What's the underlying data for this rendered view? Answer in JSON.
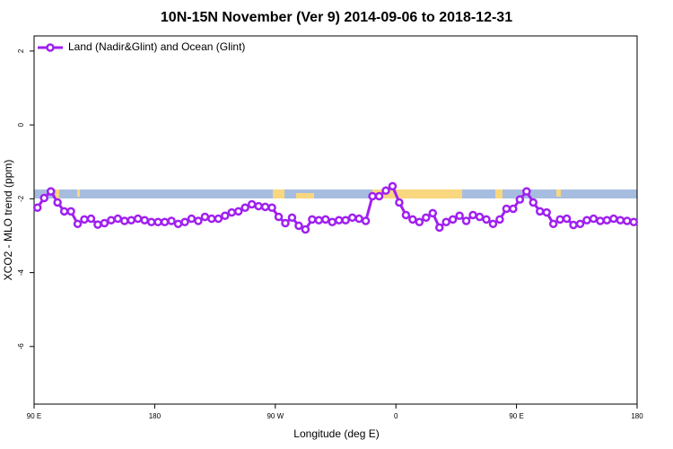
{
  "chart_data": {
    "type": "line",
    "title": "10N-15N November (Ver 9)   2014-09-06 to 2018-12-31",
    "x_label": "Longitude (deg E)",
    "y_label": "XCO2 - MLO trend (ppm)",
    "x": [
      92.5,
      97.5,
      102.5,
      107.5,
      112.5,
      117.5,
      122.5,
      127.5,
      132.5,
      137.5,
      142.5,
      147.5,
      152.5,
      157.5,
      162.5,
      167.5,
      172.5,
      177.5,
      182.5,
      187.5,
      192.5,
      197.5,
      202.5,
      207.5,
      212.5,
      217.5,
      222.5,
      227.5,
      232.5,
      237.5,
      242.5,
      247.5,
      252.5,
      257.5,
      262.5,
      267.5,
      272.5,
      277.5,
      282.5,
      287.5,
      292.5,
      297.5,
      302.5,
      307.5,
      312.5,
      317.5,
      322.5,
      327.5,
      332.5,
      337.5,
      342.5,
      347.5,
      352.5,
      357.5,
      362.5,
      367.5,
      372.5,
      377.5,
      382.5,
      387.5,
      392.5,
      397.5,
      402.5,
      407.5,
      412.5,
      417.5,
      422.5,
      427.5,
      432.5,
      437.5,
      442.5,
      447.5,
      452.5,
      457.5,
      462.5,
      467.5,
      472.5,
      477.5,
      482.5,
      487.5,
      492.5,
      497.5,
      502.5,
      507.5,
      512.5,
      517.5,
      522.5,
      527.5,
      532.5,
      537.5
    ],
    "series": [
      {
        "name": "Land (Nadir&Glint) and Ocean (Glint)",
        "color": "#a020f0",
        "values": [
          -2.24,
          -1.98,
          -1.8,
          -2.1,
          -2.34,
          -2.34,
          -2.68,
          -2.56,
          -2.54,
          -2.7,
          -2.66,
          -2.58,
          -2.54,
          -2.6,
          -2.58,
          -2.54,
          -2.58,
          -2.63,
          -2.63,
          -2.63,
          -2.6,
          -2.68,
          -2.63,
          -2.54,
          -2.6,
          -2.49,
          -2.54,
          -2.54,
          -2.46,
          -2.37,
          -2.34,
          -2.24,
          -2.15,
          -2.2,
          -2.22,
          -2.24,
          -2.49,
          -2.66,
          -2.51,
          -2.73,
          -2.83,
          -2.56,
          -2.58,
          -2.56,
          -2.63,
          -2.58,
          -2.58,
          -2.51,
          -2.54,
          -2.6,
          -1.93,
          -1.93,
          -1.78,
          -1.66,
          -2.1,
          -2.44,
          -2.56,
          -2.63,
          -2.51,
          -2.39,
          -2.78,
          -2.63,
          -2.56,
          -2.46,
          -2.6,
          -2.44,
          -2.49,
          -2.56,
          -2.68,
          -2.56,
          -2.27,
          -2.27,
          -2.02,
          -1.8,
          -2.1,
          -2.34,
          -2.37,
          -2.68,
          -2.56,
          -2.54,
          -2.71,
          -2.68,
          -2.58,
          -2.54,
          -2.6,
          -2.58,
          -2.54,
          -2.58,
          -2.6,
          -2.63
        ]
      }
    ],
    "xlim": [
      90,
      540
    ],
    "xticks": [
      {
        "value": 90,
        "label": "90 E"
      },
      180,
      {
        "value": 270,
        "label": "90 W"
      },
      {
        "value": 360,
        "label": "0"
      },
      {
        "value": 450,
        "label": "90 E"
      },
      {
        "value": 540,
        "label": "180"
      }
    ],
    "ylim": [
      -7.56,
      2.41
    ],
    "yticks": [
      2,
      0,
      -2,
      -4,
      -6
    ],
    "legend_position": "top-left"
  }
}
